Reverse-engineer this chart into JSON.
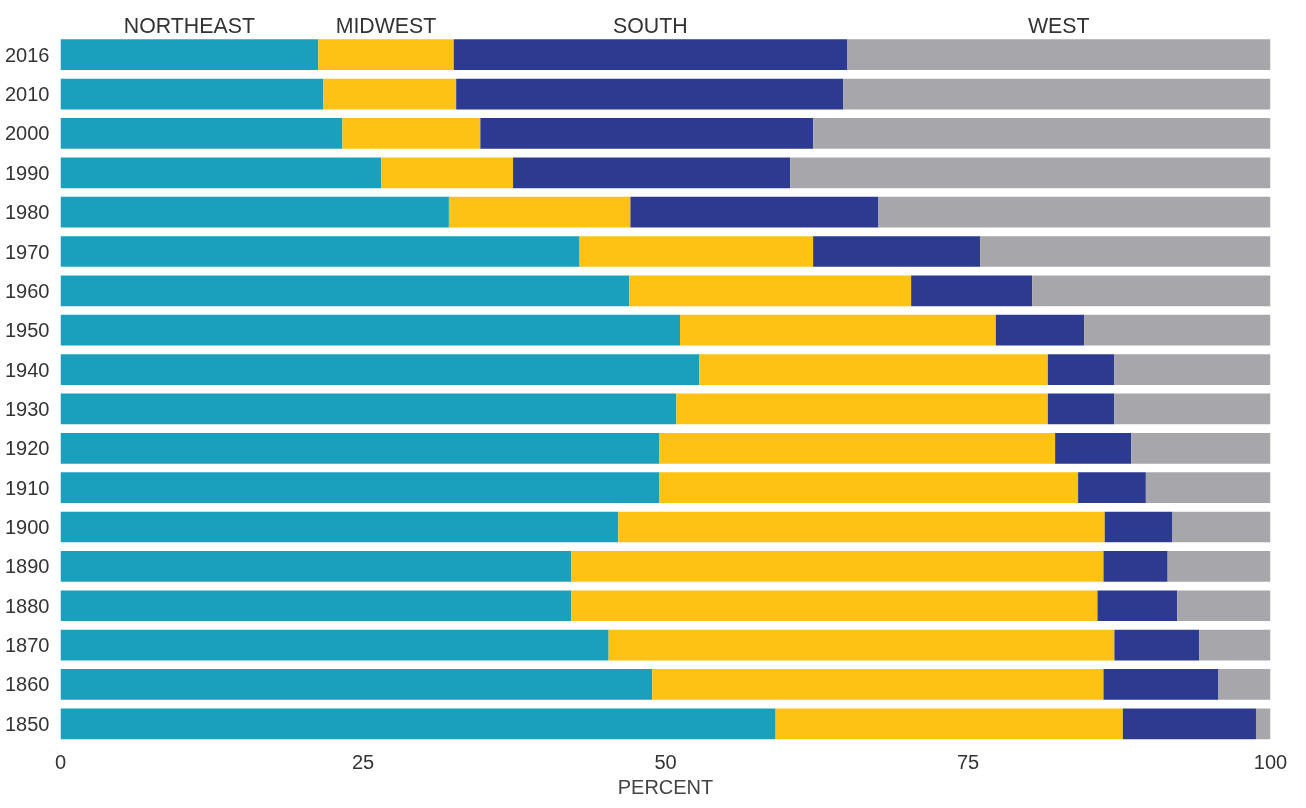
{
  "chart_data": {
    "type": "bar",
    "orientation": "horizontal",
    "stacked": true,
    "xlabel": "PERCENT",
    "xlim": [
      0,
      100
    ],
    "xticks": [
      0,
      25,
      50,
      75,
      100
    ],
    "grid": false,
    "categories": [
      "2016",
      "2010",
      "2000",
      "1990",
      "1980",
      "1970",
      "1960",
      "1950",
      "1940",
      "1930",
      "1920",
      "1910",
      "1900",
      "1890",
      "1880",
      "1870",
      "1860",
      "1850"
    ],
    "series": [
      {
        "name": "NORTHEAST",
        "color": "#1aa0bd",
        "values": [
          21.3,
          21.7,
          23.3,
          26.5,
          32.1,
          42.9,
          47.0,
          51.2,
          52.8,
          50.9,
          49.5,
          49.5,
          46.1,
          42.2,
          42.2,
          45.3,
          48.9,
          59.1
        ]
      },
      {
        "name": "MIDWEST",
        "color": "#fdc213",
        "values": [
          11.2,
          11.0,
          11.4,
          10.9,
          15.0,
          19.3,
          23.3,
          26.1,
          28.8,
          30.7,
          32.7,
          34.6,
          40.2,
          44.0,
          43.5,
          41.8,
          37.3,
          28.7
        ]
      },
      {
        "name": "SOUTH",
        "color": "#2c3a8f",
        "values": [
          32.5,
          32.0,
          27.5,
          22.9,
          20.5,
          13.8,
          10.0,
          7.3,
          5.5,
          5.5,
          6.3,
          5.6,
          5.6,
          5.3,
          6.6,
          7.0,
          9.5,
          11.0
        ]
      },
      {
        "name": "WEST",
        "color": "#a7a7ab",
        "values": [
          35.0,
          35.3,
          37.8,
          39.7,
          32.4,
          24.0,
          19.7,
          15.4,
          12.9,
          12.9,
          11.5,
          10.3,
          8.1,
          8.5,
          7.7,
          5.9,
          4.3,
          1.2
        ]
      }
    ]
  }
}
